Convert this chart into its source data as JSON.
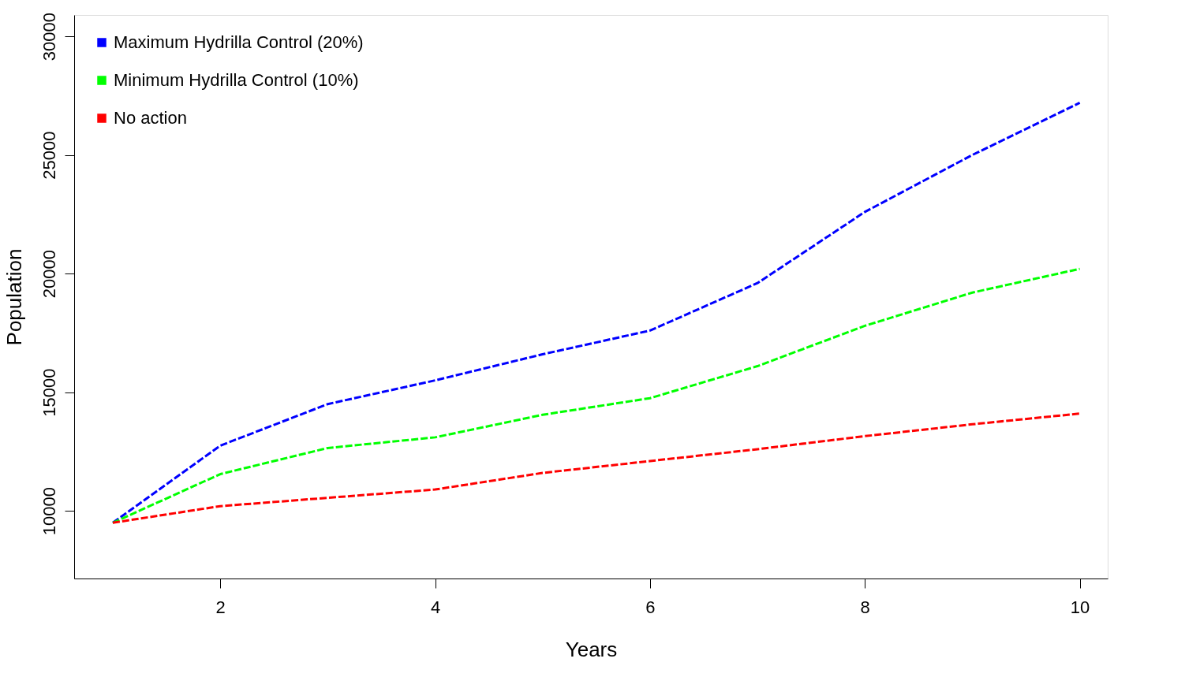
{
  "chart_data": {
    "type": "line",
    "xlabel": "Years",
    "ylabel": "Population",
    "x": [
      1,
      2,
      3,
      4,
      5,
      6,
      7,
      8,
      9,
      10
    ],
    "series": [
      {
        "name": "Maximum Hydrilla Control (20%)",
        "color": "#0000ff",
        "values": [
          9500,
          12750,
          14500,
          15500,
          16600,
          17600,
          19600,
          22600,
          25000,
          27200
        ]
      },
      {
        "name": "Minimum Hydrilla Control (10%)",
        "color": "#00ff00",
        "values": [
          9500,
          11550,
          12650,
          13100,
          14050,
          14750,
          16100,
          17800,
          19200,
          20200
        ]
      },
      {
        "name": "No action",
        "color": "#ff0000",
        "values": [
          9500,
          10200,
          10550,
          10900,
          11600,
          12100,
          12600,
          13150,
          13650,
          14100
        ]
      }
    ],
    "xlim": [
      0.64,
      10.26
    ],
    "ylim": [
      7150,
      30900
    ],
    "xticks": [
      2,
      4,
      6,
      8,
      10
    ],
    "yticks": [
      10000,
      15000,
      20000,
      25000,
      30000
    ],
    "grid": false,
    "legend": "top left",
    "line_style": "dashed",
    "marker": "none"
  }
}
